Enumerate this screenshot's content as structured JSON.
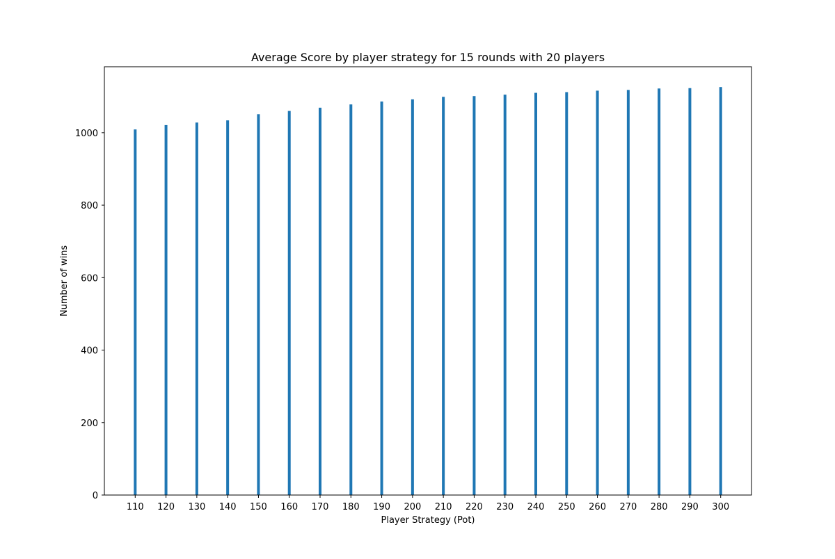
{
  "chart_data": {
    "type": "bar",
    "title": "Average Score by player strategy for 15 rounds with 20 players",
    "xlabel": "Player Strategy (Pot)",
    "ylabel": "Number of wins",
    "categories": [
      "110",
      "120",
      "130",
      "140",
      "150",
      "160",
      "170",
      "180",
      "190",
      "200",
      "210",
      "220",
      "230",
      "240",
      "250",
      "260",
      "270",
      "280",
      "290",
      "300"
    ],
    "x": [
      110,
      120,
      130,
      140,
      150,
      160,
      170,
      180,
      190,
      200,
      210,
      220,
      230,
      240,
      250,
      260,
      270,
      280,
      290,
      300
    ],
    "values": [
      1009,
      1021,
      1028,
      1034,
      1051,
      1060,
      1069,
      1078,
      1086,
      1092,
      1099,
      1101,
      1105,
      1110,
      1112,
      1116,
      1118,
      1122,
      1123,
      1126
    ],
    "xlim": [
      100,
      310
    ],
    "ylim": [
      0,
      1182
    ],
    "yticks": [
      0,
      200,
      400,
      600,
      800,
      1000
    ],
    "yticklabels": [
      "0",
      "200",
      "400",
      "600",
      "800",
      "1000"
    ],
    "grid": false,
    "legend": "none",
    "bar_color": "#1f77b4"
  }
}
